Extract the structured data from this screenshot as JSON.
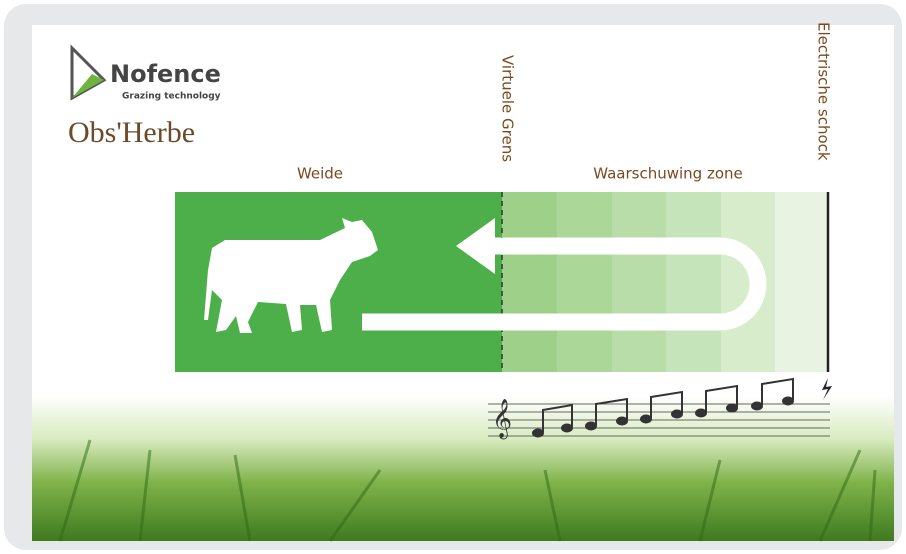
{
  "logo": {
    "brand": "Nofence",
    "tagline": "Grazing technology",
    "partner": "Obs'Herbe"
  },
  "diagram": {
    "pasture_label": "Weide",
    "boundary_label": "Virtuele Grens",
    "warning_label": "Waarschuwing zone",
    "shock_label": "Electrische schock"
  }
}
